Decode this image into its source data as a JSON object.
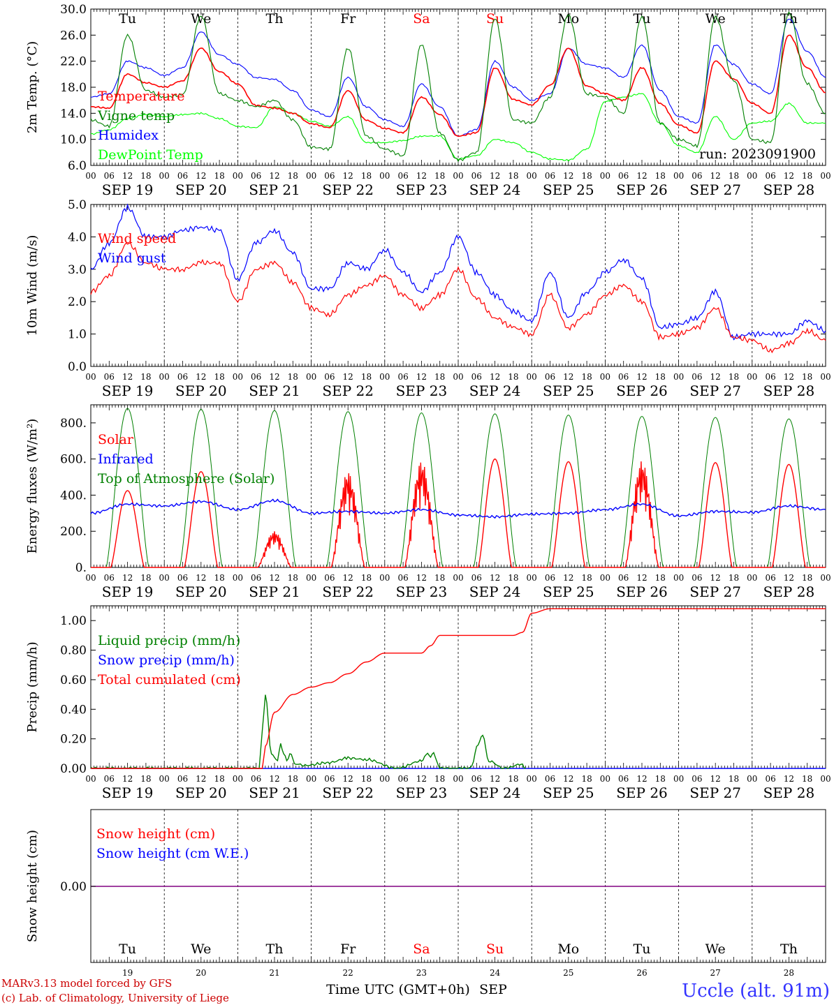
{
  "chart_data": [
    {
      "type": "line",
      "ylabel": "2m Temp. (°C)",
      "ylim": [
        6,
        30
      ],
      "yticks": [
        "6.0",
        "10.0",
        "14.0",
        "18.0",
        "22.0",
        "26.0",
        "30.0"
      ],
      "annotation": "run: 2023091900",
      "series": [
        {
          "name": "Temperature",
          "color": "#ff0000",
          "x": [
            0,
            6,
            12,
            18,
            24,
            30,
            36,
            42,
            48,
            54,
            60,
            66,
            72,
            78,
            84,
            90,
            96,
            102,
            108,
            114,
            120,
            126,
            132,
            138,
            144,
            150,
            156,
            162,
            168,
            174,
            180,
            186,
            192,
            198,
            204,
            210,
            216,
            222,
            228,
            234,
            240
          ],
          "y": [
            15,
            14.8,
            20,
            18.7,
            18,
            19,
            24,
            20.4,
            18.5,
            15.2,
            14.8,
            14,
            12.4,
            11.8,
            17.5,
            12.9,
            11.7,
            11,
            16.5,
            13.8,
            10.5,
            11,
            21,
            16.1,
            15.3,
            18.3,
            24,
            18.2,
            17,
            16,
            21,
            15.5,
            12.2,
            11,
            22,
            19.3,
            15.5,
            14,
            26,
            21,
            17.2
          ]
        },
        {
          "name": "Vigne temp",
          "color": "#008000",
          "x": [
            0,
            6,
            12,
            18,
            24,
            30,
            36,
            42,
            48,
            54,
            60,
            66,
            72,
            78,
            84,
            90,
            96,
            102,
            108,
            114,
            120,
            126,
            132,
            138,
            144,
            150,
            156,
            162,
            168,
            174,
            180,
            186,
            192,
            198,
            204,
            210,
            216,
            222,
            228,
            234,
            240
          ],
          "y": [
            13,
            12,
            26,
            17.5,
            16.5,
            16.8,
            29,
            17,
            16,
            15,
            16,
            13,
            8.8,
            8.5,
            24,
            10.5,
            8.5,
            7.5,
            24.5,
            11,
            6.8,
            8,
            28.5,
            13,
            12.5,
            16.5,
            29,
            17,
            16.5,
            14,
            28.8,
            12.5,
            10,
            9,
            28.8,
            19,
            10,
            9.5,
            29.5,
            18.5,
            14
          ]
        },
        {
          "name": "Humidex",
          "color": "#0000ff",
          "x": [
            0,
            6,
            12,
            18,
            24,
            30,
            36,
            42,
            48,
            54,
            60,
            66,
            72,
            78,
            84,
            90,
            96,
            102,
            108,
            114,
            120,
            126,
            132,
            138,
            144,
            150,
            156,
            162,
            168,
            174,
            180,
            186,
            192,
            198,
            204,
            210,
            216,
            222,
            228,
            234,
            240
          ],
          "y": [
            16.5,
            17,
            22,
            21,
            19.8,
            21,
            26.5,
            23,
            21.5,
            19.5,
            19.2,
            17.5,
            14.5,
            13.5,
            19.5,
            15,
            13,
            12,
            18.5,
            15,
            10.5,
            11.5,
            22,
            18,
            16,
            17,
            24,
            21.5,
            21,
            19.5,
            24.5,
            17.5,
            13.5,
            12.5,
            24.5,
            21.5,
            18.5,
            17,
            28.5,
            23.5,
            19.5
          ]
        },
        {
          "name": "DewPoint Temp",
          "color": "#00ff00",
          "x": [
            0,
            6,
            12,
            18,
            24,
            30,
            36,
            42,
            48,
            54,
            60,
            66,
            72,
            78,
            84,
            90,
            96,
            102,
            108,
            114,
            120,
            126,
            132,
            138,
            144,
            150,
            156,
            162,
            168,
            174,
            180,
            186,
            192,
            198,
            204,
            210,
            216,
            222,
            228,
            234,
            240
          ],
          "y": [
            10.8,
            11.5,
            13.2,
            13.8,
            13.5,
            13.8,
            14,
            13.2,
            12,
            11.8,
            15,
            14,
            12.8,
            12,
            13.5,
            9.5,
            9.5,
            9.8,
            10.5,
            10.5,
            7,
            7.5,
            10,
            9.5,
            8,
            7,
            6.8,
            8.5,
            15.8,
            16.5,
            17,
            12.5,
            9,
            8,
            13.5,
            10,
            12.5,
            12.8,
            15.5,
            12.5,
            12.5
          ]
        }
      ]
    },
    {
      "type": "line",
      "ylabel": "10m Wind (m/s)",
      "ylim": [
        0,
        5
      ],
      "yticks": [
        "0.0",
        "1.0",
        "2.0",
        "3.0",
        "4.0",
        "5.0"
      ],
      "series": [
        {
          "name": "Wind speed",
          "color": "#ff0000",
          "x": [
            0,
            6,
            12,
            18,
            24,
            30,
            36,
            42,
            48,
            54,
            60,
            66,
            72,
            78,
            84,
            90,
            96,
            102,
            108,
            114,
            120,
            126,
            132,
            138,
            144,
            150,
            156,
            162,
            168,
            174,
            180,
            186,
            192,
            198,
            204,
            210,
            216,
            222,
            228,
            234,
            240
          ],
          "y": [
            2.3,
            2.8,
            3.8,
            3.2,
            3,
            3,
            3.2,
            3.2,
            2,
            3,
            3.2,
            2.6,
            1.8,
            1.6,
            2.2,
            2.5,
            2.8,
            2.2,
            1.8,
            2.2,
            3,
            2.1,
            1.5,
            1.2,
            1,
            2.2,
            1.2,
            1.6,
            2.2,
            2.5,
            2,
            0.9,
            1,
            1.2,
            1.8,
            0.9,
            0.8,
            0.5,
            0.7,
            1.1,
            0.8
          ]
        },
        {
          "name": "Wind gust",
          "color": "#0000ff",
          "x": [
            0,
            6,
            12,
            18,
            24,
            30,
            36,
            42,
            48,
            54,
            60,
            66,
            72,
            78,
            84,
            90,
            96,
            102,
            108,
            114,
            120,
            126,
            132,
            138,
            144,
            150,
            156,
            162,
            168,
            174,
            180,
            186,
            192,
            198,
            204,
            210,
            216,
            222,
            228,
            234,
            240
          ],
          "y": [
            3,
            3.8,
            4.9,
            4,
            4,
            4.2,
            4.3,
            4.2,
            2.7,
            3.8,
            4.2,
            3.5,
            2.4,
            2.4,
            3.2,
            3,
            3.6,
            2.9,
            2.3,
            2.9,
            4,
            2.9,
            2.2,
            1.7,
            1.4,
            2.9,
            1.5,
            2.3,
            2.9,
            3.3,
            2.7,
            1.2,
            1.3,
            1.5,
            2.3,
            0.9,
            1,
            1,
            1,
            1.4,
            1.1
          ]
        }
      ]
    },
    {
      "type": "line",
      "ylabel": "Energy fluxes (W/m²)",
      "ylim": [
        0,
        900
      ],
      "yticks": [
        "0.",
        "200.",
        "400.",
        "600.",
        "800."
      ],
      "series": [
        {
          "name": "Solar",
          "color": "#ff0000",
          "daily_peaks": [
            425,
            530,
            200,
            530,
            590,
            600,
            585,
            590,
            580,
            570
          ]
        },
        {
          "name": "Infrared",
          "color": "#0000ff",
          "x": [
            0,
            12,
            24,
            36,
            48,
            60,
            72,
            84,
            96,
            108,
            120,
            132,
            144,
            156,
            168,
            180,
            192,
            204,
            216,
            228,
            240
          ],
          "y": [
            300,
            350,
            340,
            365,
            320,
            370,
            300,
            310,
            300,
            320,
            290,
            280,
            295,
            300,
            320,
            350,
            285,
            310,
            305,
            340,
            320
          ]
        },
        {
          "name": "Top of Atmosphere (Solar)",
          "color": "#008000",
          "daily_peaks": [
            880,
            875,
            868,
            862,
            855,
            850,
            843,
            836,
            830,
            822
          ]
        }
      ]
    },
    {
      "type": "line",
      "ylabel": "Precip (mm/h)",
      "ylim": [
        0,
        1.1
      ],
      "yticks": [
        "0.00",
        "0.20",
        "0.40",
        "0.60",
        "0.80",
        "1.00"
      ],
      "series": [
        {
          "name": "Liquid precip (mm/h)",
          "color": "#008000",
          "x": [
            0,
            55,
            56,
            57,
            59,
            61,
            62,
            63,
            64,
            65,
            67,
            70,
            78,
            84,
            90,
            100,
            108,
            110,
            111,
            112,
            114,
            124,
            125,
            126,
            128,
            130,
            135,
            141,
            142
          ],
          "y": [
            0,
            0,
            0.25,
            0.5,
            0.1,
            0.05,
            0.17,
            0.1,
            0.05,
            0.1,
            0.03,
            0.02,
            0.04,
            0.07,
            0.06,
            0,
            0.05,
            0.1,
            0.08,
            0.1,
            0,
            0,
            0.05,
            0.15,
            0.22,
            0.05,
            0,
            0.03,
            0
          ]
        },
        {
          "name": "Snow precip (mm/h)",
          "color": "#0000ff",
          "x": [
            0,
            240
          ],
          "y": [
            0,
            0
          ]
        },
        {
          "name": "Total cumulated (cm)",
          "color": "#ff0000",
          "x": [
            0,
            56,
            57,
            60,
            66,
            72,
            78,
            84,
            90,
            96,
            102,
            108,
            111,
            114,
            120,
            126,
            132,
            138,
            141,
            144,
            150,
            240
          ],
          "y": [
            0,
            0,
            0.15,
            0.38,
            0.5,
            0.55,
            0.58,
            0.64,
            0.72,
            0.78,
            0.78,
            0.78,
            0.83,
            0.9,
            0.9,
            0.9,
            0.9,
            0.9,
            0.92,
            1.05,
            1.08,
            1.08
          ]
        }
      ]
    },
    {
      "type": "line",
      "ylabel": "Snow height (cm)",
      "yticks": [
        "0.00"
      ],
      "series": [
        {
          "name": "Snow height (cm)",
          "color": "#ff0000",
          "x": [
            0,
            240
          ],
          "y": [
            0,
            0
          ]
        },
        {
          "name": "Snow height (cm W.E.)",
          "color": "#0000ff",
          "x": [
            0,
            240
          ],
          "y": [
            0,
            0
          ]
        }
      ]
    }
  ],
  "days": [
    {
      "abbr": "Tu",
      "date": "SEP 19",
      "num": "19",
      "color": "#000000"
    },
    {
      "abbr": "We",
      "date": "SEP 20",
      "num": "20",
      "color": "#000000"
    },
    {
      "abbr": "Th",
      "date": "SEP 21",
      "num": "21",
      "color": "#000000"
    },
    {
      "abbr": "Fr",
      "date": "SEP 22",
      "num": "22",
      "color": "#000000"
    },
    {
      "abbr": "Sa",
      "date": "SEP 23",
      "num": "23",
      "color": "#ff0000"
    },
    {
      "abbr": "Su",
      "date": "SEP 24",
      "num": "24",
      "color": "#ff0000"
    },
    {
      "abbr": "Mo",
      "date": "SEP 25",
      "num": "25",
      "color": "#000000"
    },
    {
      "abbr": "Tu",
      "date": "SEP 26",
      "num": "26",
      "color": "#000000"
    },
    {
      "abbr": "We",
      "date": "SEP 27",
      "num": "27",
      "color": "#000000"
    },
    {
      "abbr": "Th",
      "date": "SEP 28",
      "num": "28",
      "color": "#000000"
    }
  ],
  "hour_labels": [
    "00",
    "06",
    "12",
    "18"
  ],
  "end_hour_label": "00",
  "xlabel": "Time UTC (GMT+0h)",
  "xlabel_month": "SEP",
  "footer": {
    "credit_line1": "MARv3.13 model forced by GFS",
    "credit_line2": "(c) Lab. of Climatology, University of Liege",
    "station": "Uccle (alt. 91m)"
  }
}
